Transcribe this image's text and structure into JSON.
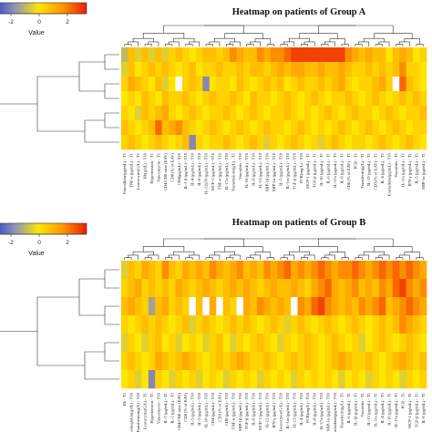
{
  "chart_data": [
    {
      "type": "heatmap",
      "title": "Heatmap on patients of Group A",
      "color_key": {
        "label": "Value",
        "ticks": [
          "-2",
          "0",
          "2"
        ],
        "range": [
          -3.5,
          3.5
        ],
        "colors": [
          "#2b35c8",
          "#ffe600",
          "#ee1c00"
        ]
      },
      "n_rows": 7,
      "columns": [
        "Fractalkine(pg/mL) - T1",
        "TNF-α (pg/mL) - T1",
        "Leucocytes(G/L) - T1",
        "Hb(g/dL) - T10",
        "Hypertension - T1",
        "Vancomycin - T1",
        "CD4/CD8 ratio (EAV)",
        "CD8 (% of EAV)",
        "CD4(pg/mL) - T10",
        "IL-1 β (pg/mL) - T10",
        "IL-4 (pg/mL) - T10",
        "IL-8 (pg/mL) - T10",
        "IL-12p70 (pg/mL) - T10",
        "MCP-1 (pg/mL) - T10",
        "TNF-α (pg/mL) - T10",
        "IL-17a (pg/mL) - T10",
        "Transfusions(g/L) - T1",
        "Vasculitis - T10",
        "IL-10 (pg/mL) - T10",
        "IL-6 (pg/mL) - T10",
        "IL-13 (pg/mL) - T10",
        "MIP-1β (pg/mL) - T10",
        "MIP-1α (pg/mL) - T10",
        "IL-5 (pg/mL) - T10",
        "IL-1ra (pg/mL) - T10",
        "TGF-β (pg/mL) - T10",
        "PCR(mg/L) - T10",
        "MCP-1 (pg/mL) - T1",
        "TGF-β (pg/mL) - T1",
        "IL-10 (pg/mL) - T1",
        "IL-6 (pg/mL) - T1",
        "IL-17a (pg/mL) - T1",
        "IL-8 (pg/mL) - T1",
        "CD8 (% of EAV) - T1",
        "PCR - T1",
        "Transferrin(g/L) - T1",
        "IL-13 (pg/mL) - T1",
        "CD3 (% of EAV) - T1",
        "IL-4 (pg/mL) - T1",
        "Fractalkine(pg/mL) - T10",
        "Vasculitis - T1",
        "IL-1ra (pg/mL) - T1",
        "IFN-γ (pg/mL) - T1",
        "IL-5 (pg/mL) - T1",
        "MIP-1α (pg/mL) - T1"
      ],
      "values": [
        [
          -1.0,
          1.0,
          -0.5,
          1.0,
          -0.5,
          1.0,
          -0.5,
          0.5,
          1.0,
          0.5,
          0.0,
          0.5,
          1.0,
          1.0,
          0.5,
          1.0,
          2.0,
          1.5,
          1.0,
          1.0,
          2.0,
          1.5,
          2.0,
          2.0,
          2.5,
          3.0,
          3.0,
          3.0,
          3.0,
          3.0,
          3.0,
          3.0,
          3.0,
          2.0,
          1.5,
          1.0,
          1.5,
          1.0,
          1.0,
          0.0,
          1.0,
          1.5,
          1.0,
          0.0,
          0.5
        ],
        [
          -0.5,
          1.0,
          0.0,
          0.5,
          1.0,
          0.5,
          1.0,
          0.5,
          0.0,
          0.5,
          1.0,
          0.0,
          0.5,
          0.5,
          1.0,
          0.5,
          0.5,
          1.0,
          0.5,
          1.0,
          1.0,
          0.5,
          1.0,
          1.5,
          1.0,
          1.5,
          1.5,
          1.0,
          1.0,
          1.5,
          1.0,
          1.0,
          1.5,
          1.0,
          0.5,
          0.5,
          1.0,
          0.5,
          1.0,
          0.5,
          1.0,
          2.0,
          0.5,
          0.5,
          0.0
        ],
        [
          0.5,
          1.5,
          1.0,
          0.5,
          0.0,
          1.0,
          -0.5,
          0.0,
          null,
          0.5,
          1.0,
          0.5,
          -2.0,
          0.0,
          0.5,
          0.5,
          0.0,
          1.0,
          0.5,
          0.0,
          0.5,
          1.0,
          0.5,
          1.0,
          0.0,
          0.5,
          1.0,
          0.5,
          0.5,
          1.0,
          0.5,
          1.0,
          1.5,
          0.5,
          0.0,
          0.5,
          0.5,
          1.0,
          1.5,
          0.5,
          null,
          2.5,
          1.0,
          0.5,
          0.0
        ],
        [
          0.0,
          0.5,
          0.0,
          1.0,
          0.5,
          0.0,
          1.0,
          0.5,
          0.5,
          1.0,
          0.5,
          0.0,
          0.5,
          1.0,
          0.5,
          0.5,
          1.0,
          0.5,
          0.0,
          1.0,
          0.5,
          0.5,
          0.0,
          0.5,
          1.0,
          0.5,
          0.0,
          0.5,
          1.0,
          0.5,
          0.0,
          0.5,
          0.5,
          1.0,
          0.5,
          0.0,
          0.5,
          1.0,
          0.5,
          0.0,
          0.5,
          1.0,
          0.5,
          1.0,
          0.5
        ],
        [
          0.5,
          0.0,
          -0.5,
          1.0,
          0.5,
          1.0,
          1.5,
          0.5,
          0.0,
          0.5,
          1.0,
          0.5,
          0.0,
          0.5,
          0.5,
          1.0,
          0.5,
          0.0,
          0.5,
          1.0,
          0.5,
          0.0,
          0.5,
          0.5,
          1.0,
          0.5,
          0.0,
          0.5,
          0.0,
          0.5,
          1.0,
          0.5,
          0.0,
          0.5,
          1.0,
          0.5,
          0.5,
          0.0,
          0.5,
          1.0,
          0.5,
          0.0,
          0.5,
          0.5,
          1.0
        ],
        [
          1.0,
          0.5,
          0.0,
          0.5,
          1.0,
          2.5,
          1.0,
          1.5,
          2.0,
          1.0,
          0.5,
          0.0,
          0.5,
          1.0,
          0.5,
          0.0,
          0.5,
          1.0,
          0.5,
          0.0,
          0.5,
          1.0,
          0.5,
          0.5,
          0.0,
          0.5,
          1.0,
          0.5,
          0.0,
          0.5,
          0.0,
          0.5,
          1.0,
          0.5,
          0.0,
          0.5,
          1.0,
          0.5,
          0.0,
          0.5,
          1.0,
          0.5,
          0.0,
          0.5,
          0.5
        ],
        [
          0.5,
          1.0,
          0.5,
          0.0,
          0.5,
          1.0,
          0.5,
          0.0,
          0.5,
          1.0,
          -2.0,
          0.5,
          0.0,
          0.5,
          0.5,
          1.0,
          0.5,
          0.0,
          0.5,
          1.0,
          0.5,
          -0.5,
          0.5,
          0.0,
          0.5,
          1.0,
          0.5,
          0.0,
          0.5,
          -0.5,
          0.5,
          1.0,
          0.5,
          0.0,
          0.5,
          0.5,
          0.0,
          0.5,
          1.0,
          0.5,
          0.0,
          0.5,
          1.0,
          0.5,
          0.0
        ]
      ]
    },
    {
      "type": "heatmap",
      "title": "Heatmap on patients of Group B",
      "color_key": {
        "label": "Value",
        "ticks": [
          "-2",
          "0",
          "2"
        ],
        "range": [
          -3.5,
          3.5
        ],
        "colors": [
          "#2b35c8",
          "#ffe600",
          "#ee1c00"
        ]
      },
      "n_rows": 7,
      "columns": [
        "Hb - T1",
        "Hemoglobin(g/dL) - T10",
        "Transfusions(g/L) - T10",
        "Leucocytes(G/L) - T1",
        "Hypertension - T1",
        "Vancomycin - T10",
        "IL-7 (pg/mL) - T1",
        "IL-2 (pg/mL) - T1",
        "CD4/CD8 ratio (EAV)",
        "CD8 (% of EAV)",
        "IL-5 (pg/mL) - T10",
        "IL-2 (pg/mL) - T10",
        "IL-10 (pg/mL) - T10",
        "CD4 (pg/mL) - T10",
        "CD3 (% of EAV)",
        "CD8 (pg/mL) - T10",
        "TNF-α (pg/mL) - T10",
        "MIP-1β (pg/mL) - T10",
        "TGF-β (pg/mL) - T10",
        "IL-6 (pg/mL) - T10",
        "MCP-1 (pg/mL) - T10",
        "IL-12 (pg/mL) - T10",
        "IFN-γ (pg/mL) - T10",
        "Leucocytes(G/L) - T10",
        "IL-1ra (pg/mL) - T10",
        "IL-13 (pg/mL) - T10",
        "IL-4 (pg/mL) - T10",
        "PCR(mg/L) - T10",
        "IL-8 (pg/mL) - T10",
        "IL-17a (pg/mL) - T10",
        "MIP-1α (pg/mL) - T10",
        "Fractalkine(pg/mL) - T10",
        "Transferrin(g/L) - T1",
        "IL-6 (pg/mL) - T1",
        "IL-1β (pg/mL) - T1",
        "Vasculitis - T1",
        "IL-13 (pg/mL) - T1",
        "IL-1ra (pg/mL) - T1",
        "IL-4 (pg/mL) - T1",
        "IL-10 (pg/mL) - T1",
        "IL-17a (pg/mL) - T1",
        "PCR - T1",
        "MCP-1 (pg/mL) - T1",
        "TGF-β (pg/mL) - T1",
        "IL-8 (pg/mL) - T1"
      ],
      "values": [
        [
          -0.5,
          1.0,
          0.5,
          1.5,
          1.0,
          0.5,
          2.0,
          1.0,
          0.5,
          1.5,
          1.0,
          1.5,
          1.0,
          2.0,
          1.5,
          1.0,
          1.5,
          2.0,
          1.0,
          1.5,
          1.0,
          2.0,
          1.5,
          2.0,
          2.5,
          1.5,
          2.0,
          1.5,
          2.0,
          2.5,
          2.0,
          1.5,
          2.0,
          2.0,
          2.5,
          2.0,
          1.5,
          2.0,
          2.5,
          2.0,
          2.5,
          2.0,
          2.5,
          2.0,
          1.5
        ],
        [
          0.5,
          1.0,
          1.5,
          0.5,
          1.0,
          0.5,
          1.0,
          0.5,
          1.5,
          1.0,
          0.5,
          1.0,
          1.5,
          1.0,
          0.5,
          1.0,
          1.5,
          1.0,
          1.5,
          1.0,
          0.5,
          1.0,
          1.5,
          1.0,
          1.0,
          1.5,
          1.0,
          0.5,
          1.5,
          2.0,
          2.5,
          1.5,
          1.0,
          1.5,
          2.0,
          1.0,
          1.5,
          1.0,
          2.0,
          1.5,
          2.5,
          3.0,
          2.0,
          1.5,
          2.0
        ],
        [
          1.0,
          1.5,
          1.0,
          0.5,
          -1.5,
          1.0,
          1.5,
          0.5,
          1.0,
          0.5,
          null,
          1.0,
          null,
          1.5,
          null,
          1.0,
          0.5,
          null,
          1.5,
          1.0,
          2.0,
          1.5,
          1.0,
          1.5,
          1.0,
          null,
          2.0,
          1.5,
          2.5,
          3.0,
          2.0,
          1.5,
          1.0,
          1.5,
          1.0,
          2.0,
          1.5,
          2.0,
          2.5,
          1.0,
          1.5,
          2.0,
          2.5,
          2.0,
          1.5
        ],
        [
          0.5,
          0.0,
          0.5,
          1.0,
          0.5,
          1.0,
          0.5,
          0.0,
          0.5,
          1.0,
          -0.5,
          0.5,
          1.0,
          0.5,
          0.0,
          0.5,
          1.0,
          0.5,
          1.0,
          0.5,
          0.0,
          0.5,
          1.0,
          0.5,
          -0.5,
          0.5,
          1.0,
          0.5,
          0.0,
          0.5,
          1.0,
          0.5,
          0.0,
          0.5,
          1.0,
          0.5,
          0.0,
          0.5,
          1.0,
          0.5,
          1.0,
          2.0,
          1.5,
          1.0,
          0.5
        ],
        [
          -0.5,
          0.5,
          0.0,
          -0.5,
          0.5,
          1.0,
          0.0,
          0.5,
          -0.5,
          0.0,
          0.5,
          0.0,
          -0.5,
          0.5,
          1.0,
          0.0,
          -0.5,
          0.5,
          0.0,
          0.5,
          1.0,
          0.5,
          0.0,
          -0.5,
          0.5,
          0.0,
          0.5,
          1.0,
          0.5,
          0.0,
          0.5,
          1.0,
          0.5,
          0.0,
          0.5,
          -0.5,
          0.0,
          0.5,
          1.0,
          0.5,
          0.0,
          0.5,
          1.0,
          0.5,
          0.0
        ],
        [
          0.5,
          1.0,
          0.5,
          0.0,
          0.5,
          1.5,
          1.0,
          0.5,
          1.0,
          1.5,
          1.0,
          0.5,
          0.0,
          0.5,
          1.0,
          0.5,
          1.0,
          1.5,
          1.0,
          0.5,
          0.5,
          1.0,
          0.5,
          0.0,
          0.5,
          1.0,
          0.5,
          1.0,
          0.5,
          0.0,
          0.5,
          1.0,
          1.5,
          1.0,
          0.5,
          0.5,
          1.0,
          0.5,
          0.0,
          0.5,
          1.0,
          1.5,
          1.0,
          0.5,
          1.0
        ],
        [
          0.0,
          0.5,
          -0.5,
          0.0,
          -2.0,
          0.5,
          0.0,
          -0.5,
          0.5,
          0.0,
          0.5,
          -0.5,
          0.0,
          0.5,
          0.0,
          -0.5,
          0.5,
          0.0,
          0.5,
          0.0,
          -0.5,
          0.5,
          0.0,
          0.5,
          0.0,
          -0.5,
          0.5,
          0.0,
          0.5,
          0.0,
          0.5,
          0.0,
          -0.5,
          0.0,
          0.5,
          0.0,
          -0.5,
          0.5,
          0.0,
          0.5,
          0.0,
          -0.5,
          0.5,
          0.0,
          0.5
        ]
      ]
    }
  ]
}
